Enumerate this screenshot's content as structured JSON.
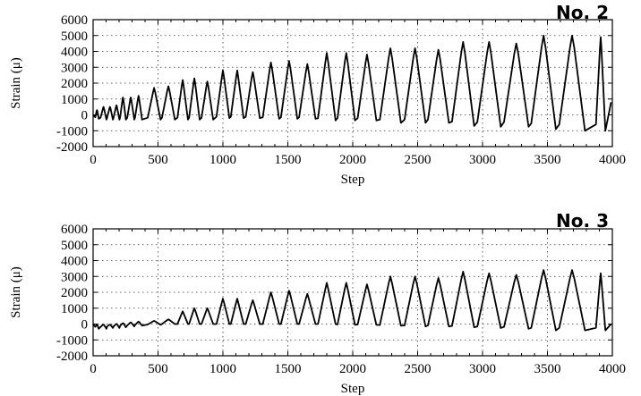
{
  "chart_data": [
    {
      "type": "line",
      "panel_label": "No. 2",
      "xlabel": "Step",
      "ylabel": "Strain (μ)",
      "xlim": [
        0,
        4000
      ],
      "ylim": [
        -2000,
        6000
      ],
      "xticks": [
        "0",
        "500",
        "1000",
        "1500",
        "2000",
        "2500",
        "3000",
        "3500",
        "4000"
      ],
      "yticks": [
        "6000",
        "5000",
        "4000",
        "3000",
        "2000",
        "1000",
        "0",
        "-1000",
        "-2000"
      ],
      "grid": true,
      "series": [
        {
          "peaks": [
            {
              "x": 30,
              "max": 300,
              "min": -250
            },
            {
              "x": 80,
              "max": 500,
              "min": -300
            },
            {
              "x": 130,
              "max": 500,
              "min": -300
            },
            {
              "x": 180,
              "max": 600,
              "min": -300
            },
            {
              "x": 230,
              "max": 1100,
              "min": -300
            },
            {
              "x": 290,
              "max": 1100,
              "min": -300
            },
            {
              "x": 350,
              "max": 1200,
              "min": -300
            },
            {
              "x": 470,
              "max": 1700,
              "min": -300
            },
            {
              "x": 580,
              "max": 1800,
              "min": -300
            },
            {
              "x": 690,
              "max": 2200,
              "min": -300
            },
            {
              "x": 780,
              "max": 2300,
              "min": -300
            },
            {
              "x": 880,
              "max": 2100,
              "min": -300
            },
            {
              "x": 1000,
              "max": 2800,
              "min": -200
            },
            {
              "x": 1110,
              "max": 2800,
              "min": -200
            },
            {
              "x": 1230,
              "max": 2700,
              "min": -200
            },
            {
              "x": 1370,
              "max": 3300,
              "min": -250
            },
            {
              "x": 1510,
              "max": 3400,
              "min": -250
            },
            {
              "x": 1650,
              "max": 3200,
              "min": -250
            },
            {
              "x": 1800,
              "max": 3900,
              "min": -350
            },
            {
              "x": 1950,
              "max": 3900,
              "min": -350
            },
            {
              "x": 2110,
              "max": 3800,
              "min": -350
            },
            {
              "x": 2290,
              "max": 4200,
              "min": -500
            },
            {
              "x": 2480,
              "max": 4200,
              "min": -500
            },
            {
              "x": 2660,
              "max": 4100,
              "min": -500
            },
            {
              "x": 2850,
              "max": 4600,
              "min": -700
            },
            {
              "x": 3050,
              "max": 4600,
              "min": -750
            },
            {
              "x": 3260,
              "max": 4500,
              "min": -750
            },
            {
              "x": 3470,
              "max": 5000,
              "min": -900
            },
            {
              "x": 3690,
              "max": 5000,
              "min": -1000
            },
            {
              "x": 3910,
              "max": 4900,
              "min": -1000
            }
          ],
          "end": {
            "x": 3990,
            "y": 800
          }
        }
      ]
    },
    {
      "type": "line",
      "panel_label": "No. 3",
      "xlabel": "Step",
      "ylabel": "Strain (μ)",
      "xlim": [
        0,
        4000
      ],
      "ylim": [
        -2000,
        6000
      ],
      "xticks": [
        "0",
        "500",
        "1000",
        "1500",
        "2000",
        "2500",
        "3000",
        "3500",
        "4000"
      ],
      "yticks": [
        "6000",
        "5000",
        "4000",
        "3000",
        "2000",
        "1000",
        "0",
        "-1000",
        "-2000"
      ],
      "grid": true,
      "series": [
        {
          "peaks": [
            {
              "x": 30,
              "max": -50,
              "min": -300
            },
            {
              "x": 80,
              "max": -50,
              "min": -300
            },
            {
              "x": 130,
              "max": -50,
              "min": -250
            },
            {
              "x": 180,
              "max": 0,
              "min": -250
            },
            {
              "x": 230,
              "max": 50,
              "min": -200
            },
            {
              "x": 290,
              "max": 100,
              "min": -150
            },
            {
              "x": 350,
              "max": 150,
              "min": -100
            },
            {
              "x": 470,
              "max": 200,
              "min": -50
            },
            {
              "x": 580,
              "max": 300,
              "min": 0
            },
            {
              "x": 690,
              "max": 800,
              "min": 0
            },
            {
              "x": 780,
              "max": 1000,
              "min": 0
            },
            {
              "x": 880,
              "max": 1000,
              "min": 0
            },
            {
              "x": 1000,
              "max": 1600,
              "min": 0
            },
            {
              "x": 1110,
              "max": 1600,
              "min": 0
            },
            {
              "x": 1230,
              "max": 1500,
              "min": 0
            },
            {
              "x": 1370,
              "max": 2000,
              "min": 0
            },
            {
              "x": 1510,
              "max": 2100,
              "min": 0
            },
            {
              "x": 1650,
              "max": 1900,
              "min": 0
            },
            {
              "x": 1800,
              "max": 2600,
              "min": 0
            },
            {
              "x": 1950,
              "max": 2600,
              "min": -50
            },
            {
              "x": 2110,
              "max": 2500,
              "min": -50
            },
            {
              "x": 2290,
              "max": 3000,
              "min": -100
            },
            {
              "x": 2480,
              "max": 3000,
              "min": -150
            },
            {
              "x": 2660,
              "max": 2900,
              "min": -150
            },
            {
              "x": 2850,
              "max": 3300,
              "min": -200
            },
            {
              "x": 3050,
              "max": 3200,
              "min": -250
            },
            {
              "x": 3260,
              "max": 3100,
              "min": -300
            },
            {
              "x": 3470,
              "max": 3400,
              "min": -400
            },
            {
              "x": 3690,
              "max": 3400,
              "min": -400
            },
            {
              "x": 3910,
              "max": 3200,
              "min": -400
            }
          ],
          "end": {
            "x": 3990,
            "y": 0
          }
        }
      ]
    }
  ]
}
